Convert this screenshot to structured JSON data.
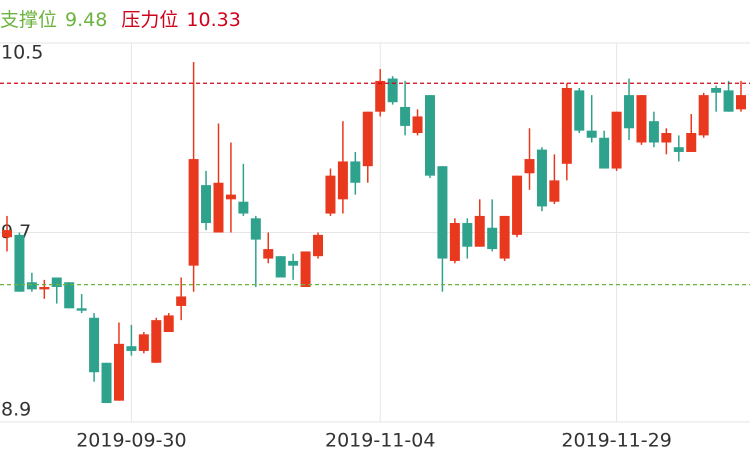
{
  "chart_data": {
    "type": "candlestick",
    "support": {
      "label": "支撑位",
      "value": 9.48,
      "color": "#6cb33f"
    },
    "resistance": {
      "label": "压力位",
      "value": 10.33,
      "color": "#d0021b"
    },
    "up_color": "#e8381d",
    "down_color": "#2fa28e",
    "grid": true,
    "ylim": [
      8.9,
      10.5
    ],
    "yticks": [
      8.9,
      9.7,
      10.5
    ],
    "categories": [
      null,
      null,
      null,
      null,
      null,
      null,
      null,
      null,
      null,
      null,
      "2019-09-30",
      null,
      null,
      null,
      null,
      null,
      null,
      null,
      null,
      null,
      null,
      null,
      null,
      null,
      null,
      null,
      null,
      null,
      null,
      null,
      "2019-11-04",
      null,
      null,
      null,
      null,
      null,
      null,
      null,
      null,
      null,
      null,
      null,
      null,
      null,
      null,
      null,
      null,
      null,
      null,
      "2019-11-29",
      null,
      null,
      null,
      null,
      null,
      null,
      null,
      null,
      null,
      null
    ],
    "open": [
      9.68,
      9.69,
      9.49,
      9.46,
      9.51,
      9.49,
      9.38,
      9.34,
      9.15,
      8.99,
      9.22,
      9.2,
      9.15,
      9.28,
      9.39,
      9.56,
      9.9,
      9.7,
      9.84,
      9.83,
      9.76,
      9.59,
      9.6,
      9.58,
      9.47,
      9.6,
      9.78,
      9.84,
      10.0,
      9.98,
      10.21,
      10.35,
      10.23,
      10.12,
      10.28,
      9.98,
      9.58,
      9.74,
      9.64,
      9.72,
      9.59,
      9.69,
      9.95,
      10.05,
      9.83,
      9.99,
      10.3,
      10.13,
      10.1,
      9.97,
      10.28,
      10.08,
      10.17,
      10.08,
      10.06,
      10.04,
      10.11,
      10.31,
      10.3,
      10.22
    ],
    "high": [
      9.77,
      9.7,
      9.53,
      9.5,
      9.51,
      9.49,
      9.44,
      9.36,
      9.15,
      9.32,
      9.31,
      9.28,
      9.34,
      9.36,
      9.51,
      10.42,
      9.96,
      10.16,
      10.08,
      9.99,
      9.77,
      9.7,
      9.6,
      9.61,
      9.62,
      9.7,
      9.97,
      10.17,
      10.04,
      10.21,
      10.39,
      10.36,
      10.34,
      10.22,
      10.28,
      9.98,
      9.76,
      9.76,
      9.84,
      9.84,
      9.77,
      9.94,
      10.14,
      10.06,
      10.03,
      10.33,
      10.31,
      10.28,
      10.13,
      10.21,
      10.35,
      10.28,
      10.21,
      10.14,
      10.11,
      10.2,
      10.29,
      10.32,
      10.34,
      10.34
    ],
    "low": [
      9.62,
      9.45,
      9.45,
      9.42,
      9.4,
      9.38,
      9.36,
      9.07,
      8.98,
      8.99,
      9.18,
      9.19,
      9.15,
      9.28,
      9.33,
      9.45,
      9.71,
      9.7,
      9.7,
      9.77,
      9.47,
      9.57,
      9.51,
      9.5,
      9.47,
      9.59,
      9.77,
      9.78,
      9.86,
      9.91,
      10.19,
      10.24,
      10.11,
      10.11,
      9.93,
      9.45,
      9.57,
      9.59,
      9.64,
      9.62,
      9.58,
      9.68,
      9.88,
      9.79,
      9.82,
      9.92,
      10.12,
      10.08,
      9.97,
      9.96,
      10.09,
      10.07,
      10.06,
      10.03,
      10.0,
      10.04,
      10.1,
      10.21,
      10.21,
      10.21
    ],
    "close": [
      9.71,
      9.45,
      9.46,
      9.47,
      9.47,
      9.38,
      9.37,
      9.11,
      8.98,
      9.23,
      9.2,
      9.27,
      9.33,
      9.35,
      9.43,
      10.01,
      9.74,
      9.91,
      9.86,
      9.78,
      9.67,
      9.63,
      9.51,
      9.56,
      9.62,
      9.69,
      9.94,
      10.0,
      9.91,
      10.21,
      10.34,
      10.25,
      10.15,
      10.19,
      9.94,
      9.59,
      9.74,
      9.64,
      9.77,
      9.63,
      9.77,
      9.94,
      10.01,
      9.81,
      9.92,
      10.31,
      10.13,
      10.1,
      9.97,
      10.21,
      10.14,
      10.28,
      10.08,
      10.12,
      10.04,
      10.12,
      10.28,
      10.29,
      10.21,
      10.28
    ]
  }
}
